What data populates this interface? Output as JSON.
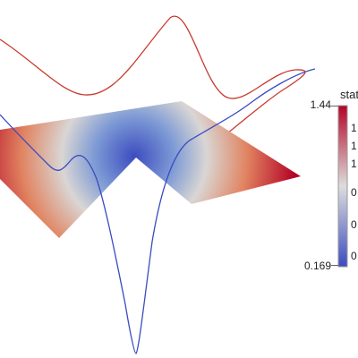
{
  "colorbar": {
    "title": "stat",
    "max_label": "1.44",
    "min_label": "0.169",
    "tick_labels": [
      "1",
      "1",
      "1",
      "0",
      "0",
      "0"
    ],
    "color_low": "#3b4cc0",
    "color_mid": "#dddddd",
    "color_high": "#b40426"
  }
}
